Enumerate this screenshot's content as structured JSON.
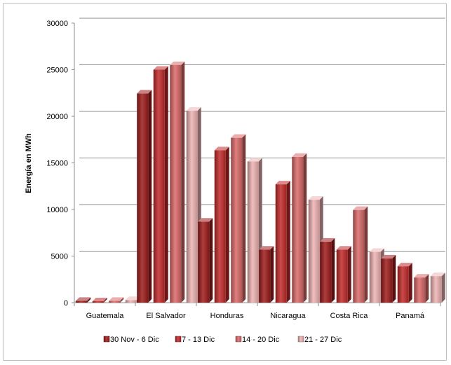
{
  "chart_data": {
    "type": "bar",
    "title": "",
    "xlabel": "",
    "ylabel": "Energía en MWh",
    "ylim": [
      0,
      30000
    ],
    "yticks": [
      0,
      5000,
      10000,
      15000,
      20000,
      25000,
      30000
    ],
    "grid": true,
    "legend_position": "bottom",
    "categories": [
      "Guatemala",
      "El Salvador",
      "Honduras",
      "Nicaragua",
      "Costa Rica",
      "Panamá"
    ],
    "series": [
      {
        "name": "30 Nov - 6 Dic",
        "color": "#a01c1c",
        "values": [
          200,
          22450,
          8700,
          5700,
          6550,
          4750
        ]
      },
      {
        "name": "7 - 13 Dic",
        "color": "#c22a2a",
        "values": [
          150,
          25000,
          16350,
          12700,
          5700,
          3900
        ]
      },
      {
        "name": "14 - 20 Dic",
        "color": "#dc6a6a",
        "values": [
          200,
          25500,
          17700,
          15650,
          9950,
          2700
        ]
      },
      {
        "name": "21 - 27 Dic",
        "color": "#efb4b4",
        "values": [
          280,
          20600,
          15150,
          11050,
          5450,
          2850
        ]
      }
    ]
  }
}
